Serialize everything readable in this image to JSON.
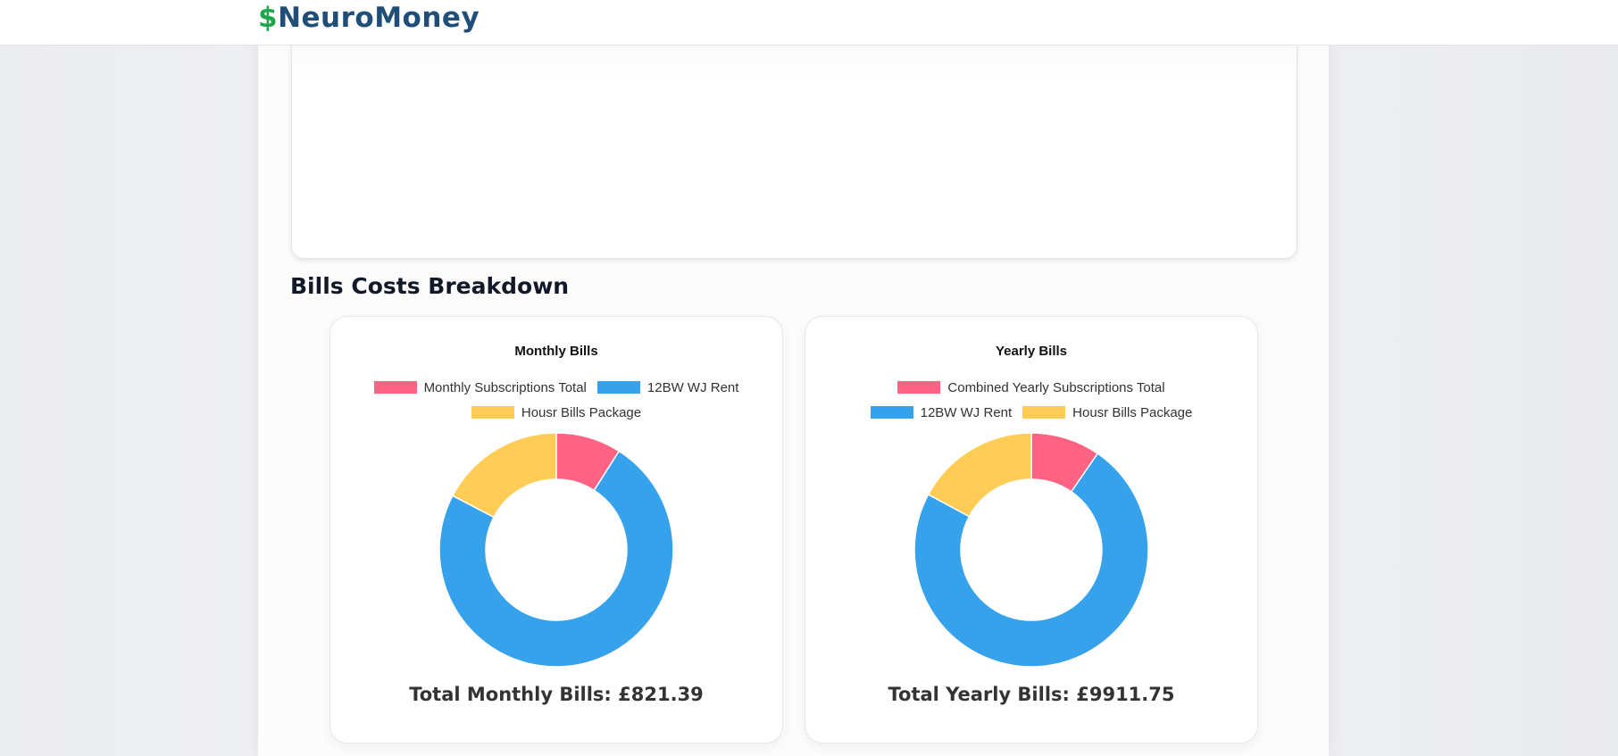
{
  "logo": {
    "symbol": "$",
    "name": "NeuroMoney"
  },
  "section_title": "Bills Costs Breakdown",
  "chart_data": [
    {
      "type": "doughnut",
      "title": "Monthly Bills",
      "categories": [
        "Monthly Subscriptions Total",
        "12BW WJ Rent",
        "Housr Bills Package"
      ],
      "values": [
        74,
        605,
        142.4
      ],
      "colors": [
        "#ff6384",
        "#36a2eb",
        "#ffcd56"
      ],
      "total_label": "Total Monthly Bills: £821.39"
    },
    {
      "type": "doughnut",
      "title": "Yearly Bills",
      "categories": [
        "Combined Yearly Subscriptions Total",
        "12BW WJ Rent",
        "Housr Bills Package"
      ],
      "values": [
        950,
        7260,
        1700
      ],
      "colors": [
        "#ff6384",
        "#36a2eb",
        "#ffcd56"
      ],
      "total_label": "Total Yearly Bills: £9911.75"
    }
  ]
}
